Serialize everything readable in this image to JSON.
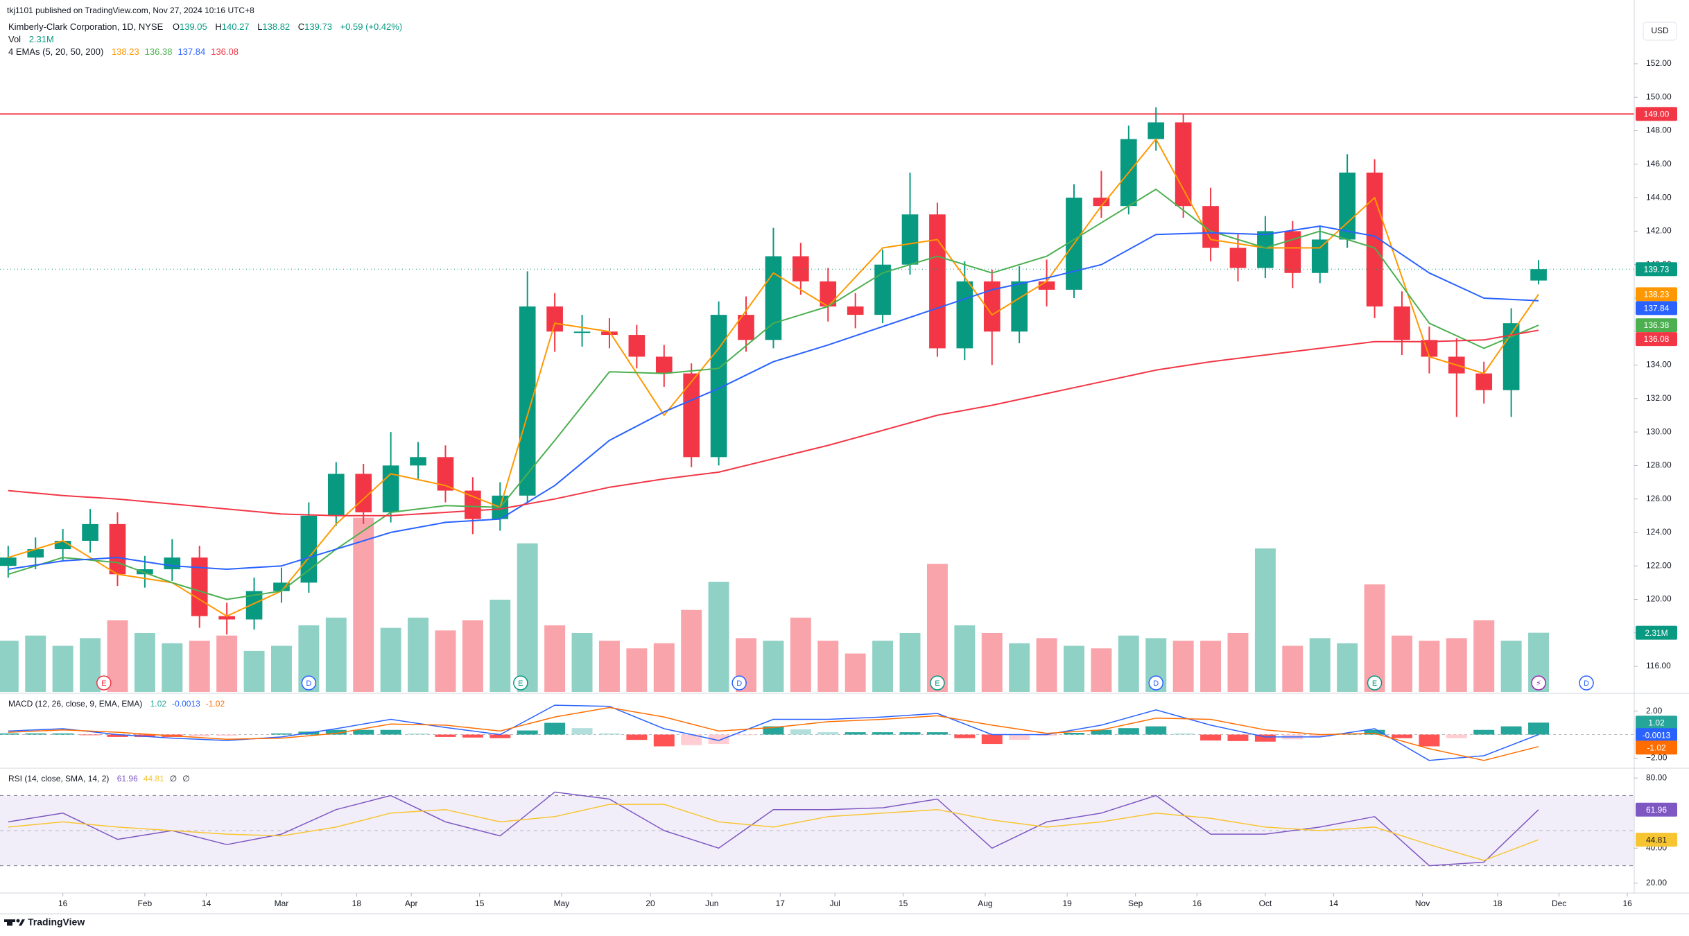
{
  "header": {
    "published": "tkj1101 published on TradingView.com, Nov 27, 2024 10:16 UTC+8",
    "brand": "TradingView"
  },
  "chart_data": {
    "type": "candlestick",
    "title": "Kimberly-Clark Corporation, 1D, NYSE",
    "currency": "USD",
    "legend_keys": [
      "O",
      "H",
      "L",
      "C"
    ],
    "change": "+0.59 (+0.42%)",
    "volume_title": "Vol",
    "last_volume_label": "2.31M",
    "ema_title": "4 EMAs (5, 20, 50, 200)",
    "up_color": "#089981",
    "down_color": "#f23645",
    "x": [
      0,
      4,
      8,
      12,
      16,
      20,
      24,
      28,
      32,
      36,
      40,
      44,
      48,
      52,
      56,
      60,
      64,
      68,
      72,
      76,
      80,
      84,
      88,
      92,
      96,
      100,
      104,
      108,
      112,
      116,
      120,
      124,
      128,
      132,
      136,
      140,
      144,
      148,
      152,
      156,
      160,
      164,
      168,
      172,
      176,
      180,
      184,
      188,
      192,
      196,
      200,
      204,
      208,
      212,
      216,
      220,
      224
    ],
    "open": [
      122,
      122.5,
      123,
      123.5,
      124.5,
      121.5,
      121.8,
      122.5,
      119,
      118.8,
      120.5,
      121,
      125,
      127.5,
      125.2,
      128,
      128.5,
      126.5,
      124.8,
      126.2,
      137.5,
      136,
      136,
      135.8,
      134.5,
      133.5,
      128.5,
      137,
      135.5,
      140.5,
      139,
      137.5,
      137,
      140,
      143,
      135,
      139,
      136,
      139,
      138.5,
      144,
      143.5,
      147.5,
      148.5,
      143.5,
      141,
      139.8,
      142,
      139.5,
      141.5,
      145.5,
      137.5,
      135.5,
      134.5,
      133.5,
      132.5,
      139.05
    ],
    "high": [
      123.2,
      123.7,
      124.2,
      125.4,
      125.2,
      122.6,
      123.6,
      123.2,
      119.8,
      121.3,
      121.9,
      125.8,
      128.2,
      128.1,
      130,
      129.4,
      129.2,
      127.3,
      127,
      139.6,
      138.3,
      137,
      136.8,
      136.4,
      135.2,
      134.1,
      137.8,
      138.1,
      142.2,
      141.3,
      139.8,
      138.3,
      140.9,
      145.5,
      143.7,
      140.2,
      139.7,
      139.9,
      140.3,
      144.8,
      145.6,
      148.3,
      149.4,
      149,
      144.6,
      141.8,
      142.9,
      142.6,
      142.3,
      146.6,
      146.3,
      138.4,
      136.3,
      135.6,
      134.2,
      137.4,
      140.27
    ],
    "low": [
      121.3,
      121.8,
      122.3,
      122.8,
      120.8,
      120.7,
      121.1,
      118.3,
      117.9,
      118.2,
      119.8,
      120.4,
      124.4,
      124.5,
      124.6,
      127.2,
      125.8,
      123.9,
      124.1,
      125.8,
      134.8,
      135.1,
      135,
      133.8,
      132.7,
      127.9,
      128,
      134.8,
      135,
      138.2,
      136.6,
      136.2,
      136.5,
      139.4,
      134.5,
      134.3,
      134,
      135.3,
      137.5,
      138,
      142.8,
      143,
      146.8,
      142.8,
      140.2,
      139,
      139.2,
      138.6,
      138.9,
      141,
      136.8,
      134.6,
      133.5,
      130.9,
      131.7,
      130.9,
      138.82
    ],
    "close": [
      122.5,
      123,
      123.5,
      124.5,
      121.5,
      121.8,
      122.5,
      119,
      118.8,
      120.5,
      121,
      125,
      127.5,
      125.2,
      128,
      128.5,
      126.5,
      124.8,
      126.2,
      137.5,
      136,
      136,
      135.8,
      134.5,
      133.5,
      128.5,
      137,
      135.5,
      140.5,
      139,
      137.5,
      137,
      140,
      143,
      135,
      139,
      136,
      139,
      138.5,
      144,
      143.5,
      147.5,
      148.5,
      143.5,
      141,
      139.8,
      142,
      139.5,
      141.5,
      145.5,
      137.5,
      135.5,
      134.5,
      133.5,
      132.5,
      136.5,
      139.73
    ],
    "volume": [
      2.0,
      2.2,
      1.8,
      2.1,
      2.8,
      2.3,
      1.9,
      2.0,
      2.2,
      1.6,
      1.8,
      2.6,
      2.9,
      6.8,
      2.5,
      2.9,
      2.4,
      2.8,
      3.6,
      5.8,
      2.6,
      2.3,
      2.0,
      1.7,
      1.9,
      3.2,
      4.3,
      2.1,
      2.0,
      2.9,
      2.0,
      1.5,
      2.0,
      2.3,
      5.0,
      2.6,
      2.3,
      1.9,
      2.1,
      1.8,
      1.7,
      2.2,
      2.1,
      2.0,
      2.0,
      2.3,
      5.6,
      1.8,
      2.1,
      1.9,
      4.2,
      2.2,
      2.0,
      2.1,
      2.8,
      2.0,
      2.31
    ],
    "volume_lim": [
      0,
      27
    ],
    "xlim": [
      -1.2,
      238
    ],
    "xticks": [
      {
        "value": 8,
        "label": "16"
      },
      {
        "value": 20,
        "label": "Feb"
      },
      {
        "value": 29,
        "label": "14"
      },
      {
        "value": 40,
        "label": "Mar"
      },
      {
        "value": 51,
        "label": "18"
      },
      {
        "value": 59,
        "label": "Apr"
      },
      {
        "value": 69,
        "label": "15"
      },
      {
        "value": 81,
        "label": "May"
      },
      {
        "value": 94,
        "label": "20"
      },
      {
        "value": 103,
        "label": "Jun"
      },
      {
        "value": 113,
        "label": "17"
      },
      {
        "value": 121,
        "label": "Jul"
      },
      {
        "value": 131,
        "label": "15"
      },
      {
        "value": 143,
        "label": "Aug"
      },
      {
        "value": 155,
        "label": "19"
      },
      {
        "value": 165,
        "label": "Sep"
      },
      {
        "value": 174,
        "label": "16"
      },
      {
        "value": 184,
        "label": "Oct"
      },
      {
        "value": 194,
        "label": "14"
      },
      {
        "value": 207,
        "label": "Nov"
      },
      {
        "value": 218,
        "label": "18"
      },
      {
        "value": 227,
        "label": "Dec"
      },
      {
        "value": 237,
        "label": "16"
      }
    ],
    "ylim": [
      114.47,
      155.81
    ],
    "yticks": [
      {
        "value": 116,
        "label": "116.00"
      },
      {
        "value": 118,
        "label": "118.00"
      },
      {
        "value": 120,
        "label": "120.00"
      },
      {
        "value": 122,
        "label": "122.00"
      },
      {
        "value": 124,
        "label": "124.00"
      },
      {
        "value": 126,
        "label": "126.00"
      },
      {
        "value": 128,
        "label": "128.00"
      },
      {
        "value": 130,
        "label": "130.00"
      },
      {
        "value": 132,
        "label": "132.00"
      },
      {
        "value": 134,
        "label": "134.00"
      },
      {
        "value": 136,
        "label": "136.00"
      },
      {
        "value": 138,
        "label": "138.00"
      },
      {
        "value": 140,
        "label": "140.00"
      },
      {
        "value": 142,
        "label": "142.00"
      },
      {
        "value": 144,
        "label": "144.00"
      },
      {
        "value": 146,
        "label": "146.00"
      },
      {
        "value": 148,
        "label": "148.00"
      },
      {
        "value": 150,
        "label": "150.00"
      },
      {
        "value": 152,
        "label": "152.00"
      }
    ],
    "hline": {
      "value": 149,
      "label": "149.00",
      "color": "#f23645"
    },
    "ema_x": [
      0,
      8,
      16,
      24,
      32,
      40,
      48,
      56,
      64,
      72,
      80,
      88,
      96,
      104,
      112,
      120,
      128,
      136,
      144,
      152,
      160,
      168,
      176,
      184,
      192,
      200,
      208,
      216,
      224
    ],
    "ema": [
      {
        "color": "#ff9800",
        "values": [
          122.5,
          123.5,
          121.5,
          121,
          119,
          120.5,
          124.5,
          127.5,
          126.8,
          125.5,
          136.5,
          136,
          131,
          135,
          139.5,
          137.5,
          141,
          141.5,
          137,
          139,
          143.5,
          147.5,
          141.5,
          141,
          141,
          144,
          134.5,
          133.5,
          138.23
        ]
      },
      {
        "color": "#4caf50",
        "values": [
          121.5,
          122.5,
          122.2,
          121,
          120,
          120.5,
          123,
          125.2,
          125.6,
          125.5,
          129.5,
          133.6,
          133.5,
          133.8,
          136.5,
          137.5,
          139.5,
          140.5,
          139.5,
          140.5,
          142.5,
          144.5,
          142,
          141,
          142,
          141,
          136.5,
          135,
          136.38
        ]
      },
      {
        "color": "#2962ff",
        "values": [
          121.8,
          122.3,
          122.5,
          122,
          121.8,
          122,
          123,
          124,
          124.6,
          124.8,
          126.8,
          129.5,
          131.2,
          132.6,
          134.2,
          135.2,
          136.3,
          137.4,
          138.5,
          139.2,
          140,
          141.8,
          141.9,
          141.8,
          142.3,
          141.7,
          139.5,
          138,
          137.84
        ]
      },
      {
        "color": "#f23645",
        "values": [
          126.5,
          126.2,
          126,
          125.7,
          125.4,
          125.1,
          125,
          125,
          125.2,
          125.4,
          126,
          126.7,
          127.2,
          127.6,
          128.4,
          129.2,
          130.1,
          131,
          131.6,
          132.3,
          133,
          133.7,
          134.2,
          134.6,
          135,
          135.4,
          135.4,
          135.5,
          136.08
        ]
      }
    ],
    "events": [
      {
        "x": 14,
        "label": "E",
        "color": "#f23645"
      },
      {
        "x": 44,
        "label": "D",
        "color": "#2962ff"
      },
      {
        "x": 75,
        "label": "E",
        "color": "#089981"
      },
      {
        "x": 107,
        "label": "D",
        "color": "#2962ff"
      },
      {
        "x": 136,
        "label": "E",
        "color": "#089981"
      },
      {
        "x": 168,
        "label": "D",
        "color": "#2962ff"
      },
      {
        "x": 200,
        "label": "E",
        "color": "#089981"
      },
      {
        "x": 224,
        "label": "⚡",
        "color": "#9c27b0"
      },
      {
        "x": 231,
        "label": "D",
        "color": "#2962ff"
      }
    ],
    "macd": {
      "title": "MACD (12, 26, close, 9, EMA, EMA)",
      "ylim": [
        -2.8,
        3.45
      ],
      "yticks": [
        {
          "value": 2,
          "label": "2.00"
        },
        {
          "value": -2,
          "label": "−2.00"
        }
      ],
      "histogram": [
        0.1,
        0.1,
        0.1,
        -0.05,
        -0.2,
        -0.2,
        -0.2,
        -0.15,
        -0.1,
        0,
        0.1,
        0.25,
        0.4,
        0.4,
        0.4,
        0.1,
        -0.2,
        -0.25,
        -0.3,
        0.35,
        1.0,
        0.55,
        0.1,
        -0.45,
        -1.0,
        -0.9,
        -0.8,
        -0.05,
        0.7,
        0.45,
        0.2,
        0.2,
        0.2,
        0.2,
        0.2,
        -0.3,
        -0.8,
        -0.45,
        -0.1,
        0.15,
        0.4,
        0.55,
        0.7,
        0.1,
        -0.5,
        -0.55,
        -0.6,
        -0.4,
        -0.2,
        0.1,
        0.4,
        -0.3,
        -1.0,
        -0.3,
        0.4,
        0.7,
        1.02
      ],
      "macd": {
        "color": "#2962ff",
        "values": [
          0.3,
          0.5,
          0,
          -0.3,
          -0.5,
          -0.2,
          0.5,
          1.3,
          0.6,
          0,
          2.5,
          2.4,
          0.5,
          -0.5,
          1.3,
          1.3,
          1.5,
          1.8,
          0,
          0,
          0.8,
          2.1,
          0.8,
          -0.2,
          -0.2,
          0.5,
          -2.2,
          -1.8,
          -0.0013
        ]
      },
      "signal": {
        "color": "#ff6d00",
        "values": [
          0.2,
          0.4,
          0.2,
          -0.1,
          -0.4,
          -0.3,
          0.1,
          0.9,
          0.8,
          0.3,
          1.5,
          2.3,
          1.5,
          0.3,
          0.6,
          1.1,
          1.3,
          1.6,
          0.8,
          0.1,
          0.4,
          1.4,
          1.3,
          0.4,
          0,
          0.1,
          -1.2,
          -2.2,
          -1.02
        ]
      }
    },
    "rsi": {
      "title": "RSI (14, close, SMA, 14, 2)",
      "extra_labels": [
        "∅",
        "∅"
      ],
      "ylim": [
        14.8,
        85.2
      ],
      "yticks": [
        {
          "value": 80,
          "label": "80.00"
        },
        {
          "value": 40,
          "label": "40.00"
        },
        {
          "value": 20,
          "label": "20.00"
        }
      ],
      "bands": [
        70,
        50,
        30
      ],
      "rsi": {
        "color": "#7e57c2",
        "values": [
          55,
          60,
          45,
          50,
          42,
          48,
          62,
          70,
          55,
          47,
          72,
          68,
          50,
          40,
          62,
          62,
          63,
          68,
          40,
          55,
          60,
          70,
          48,
          48,
          52,
          58,
          30,
          32,
          61.96
        ]
      },
      "sma": {
        "color": "#f7c531",
        "values": [
          52,
          55,
          52,
          50,
          48,
          47,
          52,
          60,
          62,
          55,
          58,
          65,
          65,
          55,
          52,
          58,
          60,
          62,
          56,
          52,
          55,
          60,
          57,
          52,
          50,
          52,
          42,
          33,
          44.81
        ]
      }
    }
  }
}
